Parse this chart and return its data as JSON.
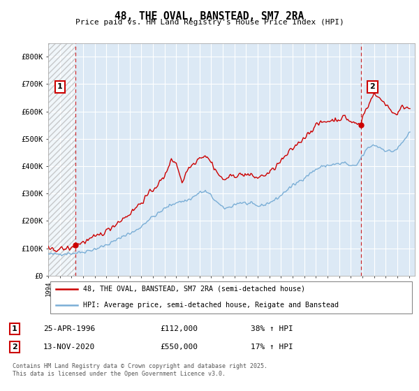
{
  "title": "48, THE OVAL, BANSTEAD, SM7 2RA",
  "subtitle": "Price paid vs. HM Land Registry's House Price Index (HPI)",
  "legend_line1": "48, THE OVAL, BANSTEAD, SM7 2RA (semi-detached house)",
  "legend_line2": "HPI: Average price, semi-detached house, Reigate and Banstead",
  "annotation1_label": "1",
  "annotation1_date": "25-APR-1996",
  "annotation1_price": "£112,000",
  "annotation1_hpi": "38% ↑ HPI",
  "annotation2_label": "2",
  "annotation2_date": "13-NOV-2020",
  "annotation2_price": "£550,000",
  "annotation2_hpi": "17% ↑ HPI",
  "footer": "Contains HM Land Registry data © Crown copyright and database right 2025.\nThis data is licensed under the Open Government Licence v3.0.",
  "red_color": "#cc0000",
  "blue_color": "#7aaed6",
  "bg_color": "#dce9f5",
  "annotation_box_color": "#cc0000",
  "ylim": [
    0,
    850000
  ],
  "yticks": [
    0,
    100000,
    200000,
    300000,
    400000,
    500000,
    600000,
    700000,
    800000
  ],
  "ytick_labels": [
    "£0",
    "£100K",
    "£200K",
    "£300K",
    "£400K",
    "£500K",
    "£600K",
    "£700K",
    "£800K"
  ],
  "purchase1_x": 1996.32,
  "purchase1_y": 112000,
  "purchase2_x": 2020.87,
  "purchase2_y": 550000,
  "xlim_start": 1994.0,
  "xlim_end": 2025.5
}
